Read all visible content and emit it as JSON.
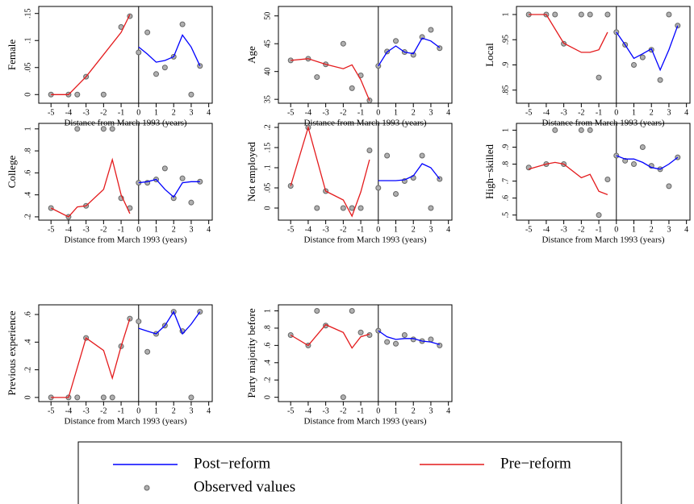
{
  "legend": [
    "Post−reform",
    "Pre−reform",
    "Observed values"
  ],
  "chart_data": [
    {
      "type": "line",
      "ylabel": "Female",
      "xlabel": "Distance from March 1993 (years)",
      "vline": 0,
      "xlim": [
        -5.7,
        4.2
      ],
      "xticks": [
        -5,
        -4,
        -3,
        -2,
        -1,
        0,
        1,
        2,
        3,
        4
      ],
      "ylim": [
        -0.016,
        0.163
      ],
      "yticks": [
        {
          "value": 0,
          "label": "0"
        },
        {
          "value": 0.05,
          "label": ".05"
        },
        {
          "value": 0.1,
          "label": ".1"
        },
        {
          "value": 0.15,
          "label": ".15"
        }
      ],
      "series": [
        {
          "name": "Post−reform",
          "color": "#0000ff",
          "x": [
            0,
            0.5,
            1,
            1.5,
            2,
            2.5,
            3,
            3.5
          ],
          "values": [
            0.088,
            0.075,
            0.06,
            0.063,
            0.07,
            0.11,
            0.088,
            0.053
          ]
        },
        {
          "name": "Pre−reform",
          "color": "#e41a1c",
          "x": [
            -5,
            -4,
            -3,
            -1,
            -0.5
          ],
          "values": [
            0,
            0,
            0.033,
            0.115,
            0.148
          ]
        },
        {
          "name": "Observed values",
          "color": "#666666",
          "x": [
            -5,
            -4,
            -3.5,
            -3,
            -2,
            -1,
            -0.5,
            0,
            0.5,
            1,
            1.5,
            2,
            2.5,
            3,
            3.5
          ],
          "values": [
            0,
            0,
            0,
            0.033,
            0,
            0.125,
            0.145,
            0.078,
            0.115,
            0.038,
            0.05,
            0.07,
            0.13,
            0,
            0.053
          ]
        }
      ]
    },
    {
      "type": "line",
      "ylabel": "Age",
      "xlabel": "Distance from March 1993 (years)",
      "vline": 0,
      "xlim": [
        -5.7,
        4.2
      ],
      "xticks": [
        -5,
        -4,
        -3,
        -2,
        -1,
        0,
        1,
        2,
        3,
        4
      ],
      "ylim": [
        34.3,
        51.7
      ],
      "yticks": [
        35,
        40,
        45,
        50
      ],
      "series": [
        {
          "name": "Post−reform",
          "color": "#0000ff",
          "x": [
            0,
            0.5,
            1,
            1.5,
            2,
            2.5,
            3,
            3.5
          ],
          "values": [
            41,
            43.5,
            44.6,
            43.5,
            43.2,
            46,
            45.5,
            44.3
          ]
        },
        {
          "name": "Pre−reform",
          "color": "#e41a1c",
          "x": [
            -5,
            -4,
            -3,
            -2,
            -1.5,
            -1,
            -0.5
          ],
          "values": [
            42,
            42.3,
            41.3,
            40.5,
            41.2,
            38.5,
            34.8
          ]
        },
        {
          "name": "Observed values",
          "color": "#666666",
          "x": [
            -5,
            -4,
            -3.5,
            -3,
            -2,
            -1.5,
            -1,
            -0.5,
            0,
            0.5,
            1,
            1.5,
            2,
            2.5,
            3,
            3.5
          ],
          "values": [
            42,
            42.3,
            39,
            41.3,
            45,
            37,
            39.3,
            34.8,
            41,
            43.6,
            45.5,
            43.5,
            43,
            46.2,
            47.5,
            44.2
          ]
        }
      ]
    },
    {
      "type": "line",
      "ylabel": "Local",
      "xlabel": "Distance from March 1993 (years)",
      "vline": 0,
      "xlim": [
        -5.7,
        4.2
      ],
      "xticks": [
        -5,
        -4,
        -3,
        -2,
        -1,
        0,
        1,
        2,
        3,
        4
      ],
      "ylim": [
        0.824,
        1.016
      ],
      "yticks": [
        {
          "value": 0.85,
          "label": ".85"
        },
        {
          "value": 0.9,
          "label": ".9"
        },
        {
          "value": 0.95,
          "label": ".95"
        },
        1
      ],
      "series": [
        {
          "name": "Post−reform",
          "color": "#0000ff",
          "x": [
            0,
            0.5,
            1,
            1.5,
            2,
            2.5,
            3,
            3.5
          ],
          "values": [
            0.965,
            0.94,
            0.913,
            0.922,
            0.932,
            0.89,
            0.93,
            0.978
          ]
        },
        {
          "name": "Pre−reform",
          "color": "#e41a1c",
          "x": [
            -5,
            -4,
            -3,
            -2,
            -1.5,
            -1,
            -0.5
          ],
          "values": [
            1,
            1,
            0.943,
            0.925,
            0.925,
            0.93,
            0.965
          ]
        },
        {
          "name": "Observed values",
          "color": "#666666",
          "x": [
            -5,
            -4,
            -3.5,
            -3,
            -2,
            -1.5,
            -1,
            -0.5,
            0,
            0.5,
            1,
            1.5,
            2,
            2.5,
            3,
            3.5
          ],
          "values": [
            1,
            1,
            1,
            0.942,
            1,
            1,
            0.875,
            1,
            0.965,
            0.94,
            0.9,
            0.915,
            0.93,
            0.87,
            1,
            0.978
          ]
        }
      ]
    },
    {
      "type": "line",
      "ylabel": "College",
      "xlabel": "Distance from March 1993 (years)",
      "vline": 0,
      "xlim": [
        -5.7,
        4.2
      ],
      "xticks": [
        -5,
        -4,
        -3,
        -2,
        -1,
        0,
        1,
        2,
        3,
        4
      ],
      "ylim": [
        0.17,
        1.05
      ],
      "yticks": [
        {
          "value": 0.2,
          "label": ".2"
        },
        {
          "value": 0.4,
          "label": ".4"
        },
        {
          "value": 0.6,
          "label": ".6"
        },
        {
          "value": 0.8,
          "label": ".8"
        },
        1
      ],
      "series": [
        {
          "name": "Post−reform",
          "color": "#0000ff",
          "x": [
            0,
            0.5,
            1,
            1.5,
            2,
            2.5,
            3,
            3.5
          ],
          "values": [
            0.51,
            0.52,
            0.54,
            0.45,
            0.38,
            0.51,
            0.52,
            0.52
          ]
        },
        {
          "name": "Pre−reform",
          "color": "#e41a1c",
          "x": [
            -5,
            -4,
            -3.5,
            -3,
            -2,
            -1.5,
            -1,
            -0.5
          ],
          "values": [
            0.28,
            0.2,
            0.29,
            0.3,
            0.45,
            0.72,
            0.4,
            0.23
          ]
        },
        {
          "name": "Observed values",
          "color": "#666666",
          "x": [
            -5,
            -4,
            -3.5,
            -3,
            -2,
            -1.5,
            -1,
            -0.5,
            0,
            0.5,
            1,
            1.5,
            2,
            2.5,
            3,
            3.5
          ],
          "values": [
            0.28,
            0.2,
            1,
            0.3,
            1,
            1,
            0.37,
            0.28,
            0.51,
            0.51,
            0.54,
            0.64,
            0.37,
            0.55,
            0.33,
            0.52
          ]
        }
      ]
    },
    {
      "type": "line",
      "ylabel": "Not employed",
      "xlabel": "Distance from March 1993 (years)",
      "vline": 0,
      "xlim": [
        -5.7,
        4.2
      ],
      "xticks": [
        -5,
        -4,
        -3,
        -2,
        -1,
        0,
        1,
        2,
        3,
        4
      ],
      "ylim": [
        -0.03,
        0.21
      ],
      "yticks": [
        {
          "value": 0,
          "label": "0"
        },
        {
          "value": 0.05,
          "label": ".05"
        },
        {
          "value": 0.1,
          "label": ".1"
        },
        {
          "value": 0.15,
          "label": ".15"
        },
        {
          "value": 0.2,
          "label": ".2"
        }
      ],
      "series": [
        {
          "name": "Post−reform",
          "color": "#0000ff",
          "x": [
            0,
            0.5,
            1,
            1.5,
            2,
            2.5,
            3,
            3.5
          ],
          "values": [
            0.068,
            0.068,
            0.068,
            0.07,
            0.08,
            0.11,
            0.1,
            0.072
          ]
        },
        {
          "name": "Pre−reform",
          "color": "#e41a1c",
          "x": [
            -5,
            -4,
            -3,
            -2,
            -1.5,
            -1,
            -0.5
          ],
          "values": [
            0.055,
            0.2,
            0.042,
            0.02,
            -0.02,
            0.04,
            0.12
          ]
        },
        {
          "name": "Observed values",
          "color": "#666666",
          "x": [
            -5,
            -4,
            -3.5,
            -3,
            -2,
            -1.5,
            -1,
            -0.5,
            0,
            0.5,
            1,
            1.5,
            2,
            2.5,
            3,
            3.5
          ],
          "values": [
            0.055,
            0.2,
            0,
            0.042,
            0,
            0,
            0,
            0.143,
            0.05,
            0.13,
            0.035,
            0.067,
            0.075,
            0.13,
            0,
            0.072
          ]
        }
      ]
    },
    {
      "type": "line",
      "ylabel": "High−skilled",
      "xlabel": "Distance from March 1993 (years)",
      "vline": 0,
      "xlim": [
        -5.7,
        4.2
      ],
      "xticks": [
        -5,
        -4,
        -3,
        -2,
        -1,
        0,
        1,
        2,
        3,
        4
      ],
      "ylim": [
        0.47,
        1.04
      ],
      "yticks": [
        {
          "value": 0.5,
          "label": ".5"
        },
        {
          "value": 0.6,
          "label": ".6"
        },
        {
          "value": 0.7,
          "label": ".7"
        },
        {
          "value": 0.8,
          "label": ".8"
        },
        {
          "value": 0.9,
          "label": ".9"
        },
        1
      ],
      "series": [
        {
          "name": "Post−reform",
          "color": "#0000ff",
          "x": [
            0,
            0.5,
            1,
            1.5,
            2,
            2.5,
            3,
            3.5
          ],
          "values": [
            0.85,
            0.83,
            0.83,
            0.81,
            0.78,
            0.77,
            0.8,
            0.84
          ]
        },
        {
          "name": "Pre−reform",
          "color": "#e41a1c",
          "x": [
            -5,
            -4,
            -3.5,
            -3,
            -2,
            -1.5,
            -1,
            -0.5
          ],
          "values": [
            0.77,
            0.8,
            0.81,
            0.8,
            0.72,
            0.74,
            0.64,
            0.62
          ]
        },
        {
          "name": "Observed values",
          "color": "#666666",
          "x": [
            -5,
            -4,
            -3.5,
            -3,
            -2,
            -1.5,
            -1,
            -0.5,
            0,
            0.5,
            1,
            1.5,
            2,
            2.5,
            3,
            3.5
          ],
          "values": [
            0.78,
            0.8,
            1,
            0.8,
            1,
            1,
            0.5,
            0.71,
            0.85,
            0.82,
            0.8,
            0.9,
            0.79,
            0.77,
            0.67,
            0.84
          ]
        }
      ]
    },
    {
      "type": "line",
      "ylabel": "Previous experience",
      "xlabel": "Distance from March 1993 (years)",
      "vline": 0,
      "xlim": [
        -5.7,
        4.2
      ],
      "xticks": [
        -5,
        -4,
        -3,
        -2,
        -1,
        0,
        1,
        2,
        3,
        4
      ],
      "ylim": [
        -0.03,
        0.67
      ],
      "yticks": [
        {
          "value": 0,
          "label": "0"
        },
        {
          "value": 0.2,
          "label": ".2"
        },
        {
          "value": 0.4,
          "label": ".4"
        },
        {
          "value": 0.6,
          "label": ".6"
        }
      ],
      "series": [
        {
          "name": "Post−reform",
          "color": "#0000ff",
          "x": [
            0,
            0.5,
            1,
            1.5,
            2,
            2.5,
            3,
            3.5
          ],
          "values": [
            0.5,
            0.48,
            0.46,
            0.52,
            0.62,
            0.46,
            0.53,
            0.62
          ]
        },
        {
          "name": "Pre−reform",
          "color": "#e41a1c",
          "x": [
            -5,
            -4,
            -3,
            -2,
            -1.5,
            -1,
            -0.5
          ],
          "values": [
            0,
            0,
            0.43,
            0.34,
            0.14,
            0.37,
            0.57
          ]
        },
        {
          "name": "Observed values",
          "color": "#666666",
          "x": [
            -5,
            -4,
            -3.5,
            -3,
            -2,
            -1.5,
            -1,
            -0.5,
            0,
            0.5,
            1,
            1.5,
            2,
            2.5,
            3,
            3.5
          ],
          "values": [
            0,
            0,
            0,
            0.43,
            0,
            0,
            0.37,
            0.57,
            0.55,
            0.33,
            0.46,
            0.52,
            0.62,
            0.48,
            0,
            0.62
          ]
        }
      ]
    },
    {
      "type": "line",
      "ylabel": "Party majority before",
      "xlabel": "Distance from March 1993 (years)",
      "vline": 0,
      "xlim": [
        -5.7,
        4.2
      ],
      "xticks": [
        -5,
        -4,
        -3,
        -2,
        -1,
        0,
        1,
        2,
        3,
        4
      ],
      "ylim": [
        -0.05,
        1.07
      ],
      "yticks": [
        {
          "value": 0,
          "label": "0"
        },
        {
          "value": 0.2,
          "label": ".2"
        },
        {
          "value": 0.4,
          "label": ".4"
        },
        {
          "value": 0.6,
          "label": ".6"
        },
        {
          "value": 0.8,
          "label": ".8"
        },
        1
      ],
      "series": [
        {
          "name": "Post−reform",
          "color": "#0000ff",
          "x": [
            0,
            0.5,
            1,
            1.5,
            2,
            2.5,
            3,
            3.5
          ],
          "values": [
            0.77,
            0.7,
            0.67,
            0.68,
            0.68,
            0.65,
            0.64,
            0.61
          ]
        },
        {
          "name": "Pre−reform",
          "color": "#e41a1c",
          "x": [
            -5,
            -4,
            -3,
            -2,
            -1.5,
            -1,
            -0.5
          ],
          "values": [
            0.72,
            0.6,
            0.84,
            0.75,
            0.57,
            0.7,
            0.73
          ]
        },
        {
          "name": "Observed values",
          "color": "#666666",
          "x": [
            -5,
            -4,
            -3.5,
            -3,
            -2,
            -1.5,
            -1,
            -0.5,
            0,
            0.5,
            1,
            1.5,
            2,
            2.5,
            3,
            3.5
          ],
          "values": [
            0.72,
            0.6,
            1,
            0.83,
            0,
            1,
            0.75,
            0.72,
            0.77,
            0.64,
            0.62,
            0.72,
            0.67,
            0.65,
            0.67,
            0.6
          ]
        }
      ]
    }
  ]
}
